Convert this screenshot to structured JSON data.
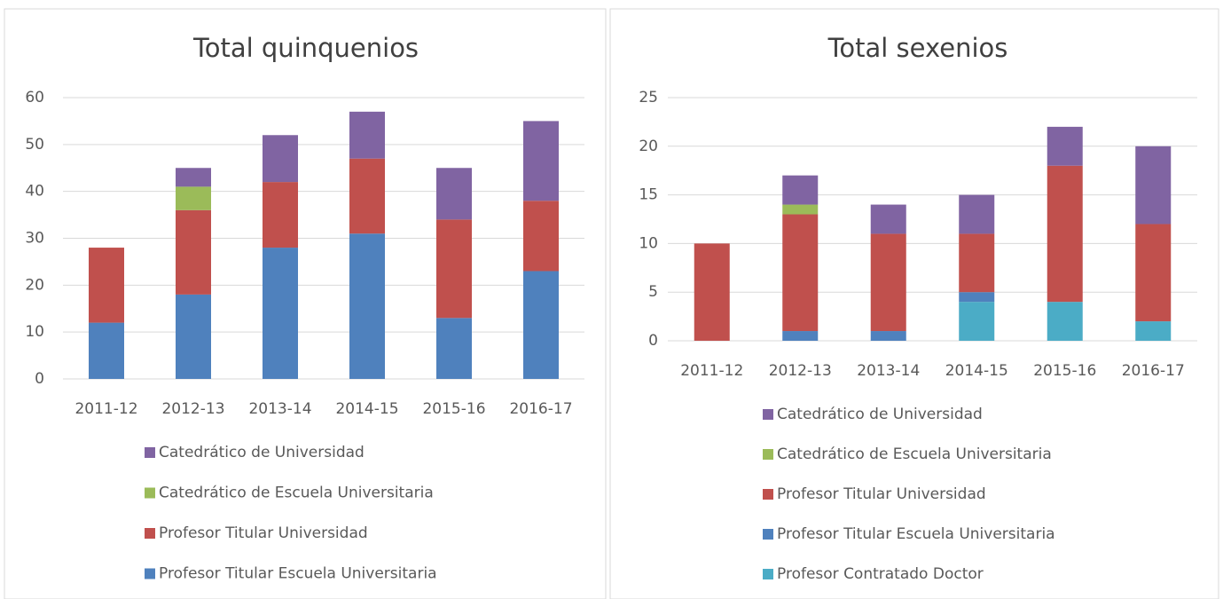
{
  "chart_data": [
    {
      "type": "bar",
      "stacked": true,
      "title": "Total quinquenios",
      "categories": [
        "2011-12",
        "2012-13",
        "2013-14",
        "2014-15",
        "2015-16",
        "2016-17"
      ],
      "series": [
        {
          "name": "Profesor Titular Escuela Universitaria",
          "color": "#4f81bd",
          "values": [
            12,
            18,
            28,
            31,
            13,
            23
          ]
        },
        {
          "name": "Profesor Titular Universidad",
          "color": "#c0504d",
          "values": [
            16,
            18,
            14,
            16,
            21,
            15
          ]
        },
        {
          "name": "Catedrático de Escuela Universitaria",
          "color": "#9bbb59",
          "values": [
            0,
            5,
            0,
            0,
            0,
            0
          ]
        },
        {
          "name": "Catedrático de Universidad",
          "color": "#8064a2",
          "values": [
            0,
            4,
            10,
            10,
            11,
            17
          ]
        }
      ],
      "ylim": [
        0,
        60
      ],
      "yticks": [
        0,
        10,
        20,
        30,
        40,
        50,
        60
      ],
      "grid": true,
      "legend": "bottom"
    },
    {
      "type": "bar",
      "stacked": true,
      "title": "Total sexenios",
      "categories": [
        "2011-12",
        "2012-13",
        "2013-14",
        "2014-15",
        "2015-16",
        "2016-17"
      ],
      "series": [
        {
          "name": "Profesor Contratado Doctor",
          "color": "#4bacc6",
          "values": [
            0,
            0,
            0,
            4,
            4,
            2
          ]
        },
        {
          "name": "Profesor Titular Escuela Universitaria",
          "color": "#4f81bd",
          "values": [
            0,
            1,
            1,
            1,
            0,
            0
          ]
        },
        {
          "name": "Profesor Titular Universidad",
          "color": "#c0504d",
          "values": [
            10,
            12,
            10,
            6,
            14,
            10
          ]
        },
        {
          "name": "Catedrático de Escuela Universitaria",
          "color": "#9bbb59",
          "values": [
            0,
            1,
            0,
            0,
            0,
            0
          ]
        },
        {
          "name": "Catedrático de Universidad",
          "color": "#8064a2",
          "values": [
            0,
            3,
            3,
            4,
            4,
            8
          ]
        }
      ],
      "ylim": [
        0,
        25
      ],
      "yticks": [
        0,
        5,
        10,
        15,
        20,
        25
      ],
      "grid": true,
      "legend": "bottom"
    }
  ]
}
